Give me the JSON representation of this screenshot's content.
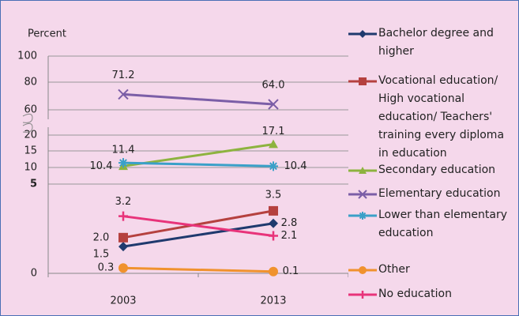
{
  "chart_data": {
    "type": "line",
    "y_axis_label": "Percent",
    "categories": [
      "2003",
      "2013"
    ],
    "ylim": [
      0,
      100
    ],
    "yticks": [
      0,
      5,
      10,
      15,
      20,
      60,
      80,
      100
    ],
    "axis_break": [
      20,
      60
    ],
    "grid": true,
    "legend": "right",
    "series": [
      {
        "name": "Bachelor degree and higher",
        "color": "#1f3a6e",
        "marker": "diamond",
        "values": [
          1.5,
          2.8
        ],
        "value_labels": [
          "1.5",
          "2.8"
        ]
      },
      {
        "name": "Vocational education/ High vocational education/ Teachers' training every diploma in education",
        "color": "#b5413f",
        "marker": "square",
        "values": [
          2.0,
          3.5
        ],
        "value_labels": [
          "2.0",
          "3.5"
        ]
      },
      {
        "name": "Secondary education",
        "color": "#8db33f",
        "marker": "triangle",
        "values": [
          10.4,
          17.1
        ],
        "value_labels": [
          "10.4",
          "17.1"
        ]
      },
      {
        "name": "Elementary education",
        "color": "#7b5ea7",
        "marker": "x",
        "values": [
          71.2,
          64.0
        ],
        "value_labels": [
          "71.2",
          "64.0"
        ]
      },
      {
        "name": "Lower than elementary education",
        "color": "#3aa0c8",
        "marker": "asterisk",
        "values": [
          11.4,
          10.4
        ],
        "value_labels": [
          "11.4",
          "10.4"
        ]
      },
      {
        "name": "Other",
        "color": "#f0922e",
        "marker": "circle",
        "values": [
          0.3,
          0.1
        ],
        "value_labels": [
          "0.3",
          "0.1"
        ]
      },
      {
        "name": "No education",
        "color": "#e8337a",
        "marker": "plus",
        "values": [
          3.2,
          2.1
        ],
        "value_labels": [
          "3.2",
          "2.1"
        ]
      }
    ]
  }
}
